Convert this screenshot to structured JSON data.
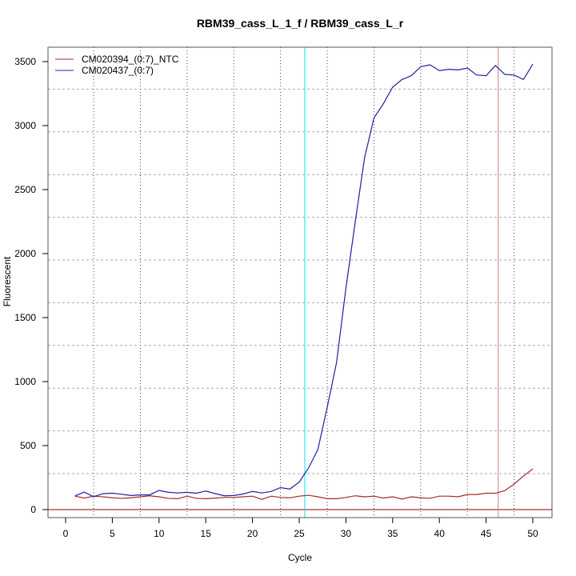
{
  "chart_data": {
    "type": "line",
    "title": "RBM39_cass_L_1_f / RBM39_cass_L_r",
    "xlabel": "Cycle",
    "ylabel": "Fluorescent",
    "xlim": [
      -1.9,
      52
    ],
    "ylim": [
      -60,
      3600
    ],
    "xticks": [
      0,
      5,
      10,
      15,
      20,
      25,
      30,
      35,
      40,
      45,
      50
    ],
    "yticks": [
      0,
      500,
      1000,
      1500,
      2000,
      2500,
      3000,
      3500
    ],
    "legend_position": "top-left",
    "reference_lines": {
      "baseline_y": 0,
      "baseline_color": "#8b0000",
      "vlines": [
        {
          "x": 25.6,
          "color": "#00e5ee"
        },
        {
          "x": 46.3,
          "color": "#cd7f7f"
        }
      ]
    },
    "grid": true,
    "x": [
      1,
      2,
      3,
      4,
      5,
      6,
      7,
      8,
      9,
      10,
      11,
      12,
      13,
      14,
      15,
      16,
      17,
      18,
      19,
      20,
      21,
      22,
      23,
      24,
      25,
      26,
      27,
      28,
      29,
      30,
      31,
      32,
      33,
      34,
      35,
      36,
      37,
      38,
      39,
      40,
      41,
      42,
      43,
      44,
      45,
      46,
      47,
      48,
      49,
      50
    ],
    "series": [
      {
        "name": "CM020394_(0:7)_NTC",
        "color": "#a52a2a",
        "values": [
          105,
          90,
          105,
          100,
          92,
          88,
          92,
          100,
          108,
          100,
          88,
          85,
          105,
          88,
          85,
          90,
          95,
          95,
          100,
          105,
          80,
          105,
          95,
          92,
          105,
          112,
          100,
          85,
          85,
          95,
          108,
          100,
          105,
          90,
          100,
          82,
          100,
          92,
          88,
          105,
          105,
          100,
          118,
          118,
          128,
          128,
          148,
          200,
          262,
          318
        ]
      },
      {
        "name": "CM020437_(0:7)",
        "color": "#2020a0",
        "values": [
          106,
          137,
          100,
          125,
          128,
          120,
          110,
          115,
          115,
          150,
          135,
          130,
          135,
          128,
          145,
          125,
          108,
          110,
          122,
          142,
          130,
          142,
          172,
          160,
          215,
          325,
          470,
          800,
          1150,
          1730,
          2250,
          2750,
          3060,
          3170,
          3300,
          3360,
          3390,
          3460,
          3475,
          3430,
          3440,
          3435,
          3450,
          3395,
          3390,
          3470,
          3400,
          3395,
          3360,
          3480
        ]
      }
    ]
  }
}
